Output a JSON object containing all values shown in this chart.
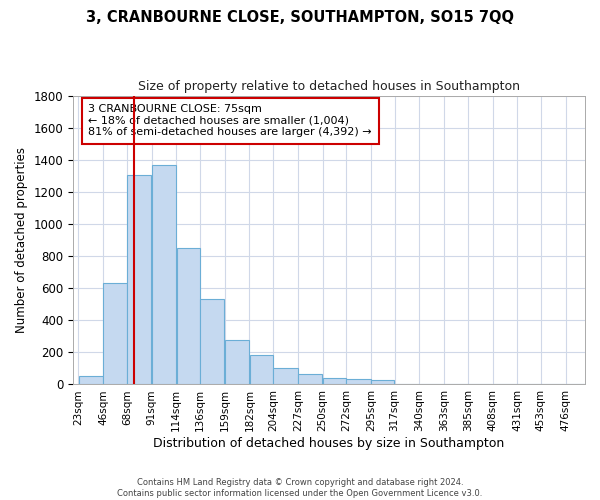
{
  "title": "3, CRANBOURNE CLOSE, SOUTHAMPTON, SO15 7QQ",
  "subtitle": "Size of property relative to detached houses in Southampton",
  "xlabel": "Distribution of detached houses by size in Southampton",
  "ylabel": "Number of detached properties",
  "footer_line1": "Contains HM Land Registry data © Crown copyright and database right 2024.",
  "footer_line2": "Contains public sector information licensed under the Open Government Licence v3.0.",
  "annotation_line1": "3 CRANBOURNE CLOSE: 75sqm",
  "annotation_line2": "← 18% of detached houses are smaller (1,004)",
  "annotation_line3": "81% of semi-detached houses are larger (4,392) →",
  "property_sqm": 75,
  "bin_edges": [
    23,
    46,
    68,
    91,
    114,
    136,
    159,
    182,
    204,
    227,
    250,
    272,
    295,
    317,
    340,
    363,
    385,
    408,
    431,
    453,
    476,
    499
  ],
  "bar_heights": [
    55,
    635,
    1305,
    1370,
    848,
    530,
    275,
    185,
    105,
    65,
    40,
    35,
    28,
    5,
    5,
    5,
    3,
    3,
    2,
    2,
    2
  ],
  "bar_color": "#c5d9f0",
  "bar_edge_color": "#6baed6",
  "vline_color": "#cc0000",
  "background_color": "#ffffff",
  "grid_color": "#d0d8e8",
  "ylim": [
    0,
    1800
  ],
  "yticks": [
    0,
    200,
    400,
    600,
    800,
    1000,
    1200,
    1400,
    1600,
    1800
  ]
}
